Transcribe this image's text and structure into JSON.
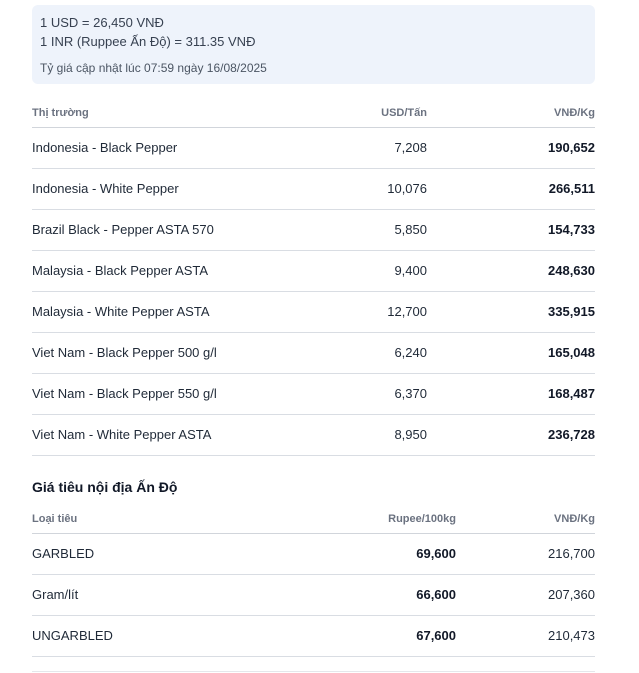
{
  "rates": {
    "usd_line": "1 USD = 26,450 VNĐ",
    "inr_line": "1 INR (Ruppee Ấn Độ) = 311.35 VNĐ",
    "updated": "Tỷ giá cập nhật lúc 07:59 ngày 16/08/2025"
  },
  "world_table": {
    "headers": {
      "market": "Thị trường",
      "usd": "USD/Tấn",
      "vnd": "VNĐ/Kg"
    },
    "rows": [
      {
        "market": "Indonesia - Black Pepper",
        "usd": "7,208",
        "vnd": "190,652"
      },
      {
        "market": "Indonesia - White Pepper",
        "usd": "10,076",
        "vnd": "266,511"
      },
      {
        "market": "Brazil Black - Pepper ASTA 570",
        "usd": "5,850",
        "vnd": "154,733"
      },
      {
        "market": "Malaysia - Black Pepper ASTA",
        "usd": "9,400",
        "vnd": "248,630"
      },
      {
        "market": "Malaysia - White Pepper ASTA",
        "usd": "12,700",
        "vnd": "335,915"
      },
      {
        "market": "Viet Nam - Black Pepper 500 g/l",
        "usd": "6,240",
        "vnd": "165,048"
      },
      {
        "market": "Viet Nam - Black Pepper 550 g/l",
        "usd": "6,370",
        "vnd": "168,487"
      },
      {
        "market": "Viet Nam - White Pepper ASTA",
        "usd": "8,950",
        "vnd": "236,728"
      }
    ]
  },
  "india_section": {
    "title": "Giá tiêu nội địa Ấn Độ",
    "headers": {
      "type": "Loại tiêu",
      "rupee": "Rupee/100kg",
      "vnd": "VNĐ/Kg"
    },
    "rows": [
      {
        "type": "GARBLED",
        "rupee": "69,600",
        "vnd": "216,700"
      },
      {
        "type": "Gram/lít",
        "rupee": "66,600",
        "vnd": "207,360"
      },
      {
        "type": "UNGARBLED",
        "rupee": "67,600",
        "vnd": "210,473"
      }
    ]
  }
}
